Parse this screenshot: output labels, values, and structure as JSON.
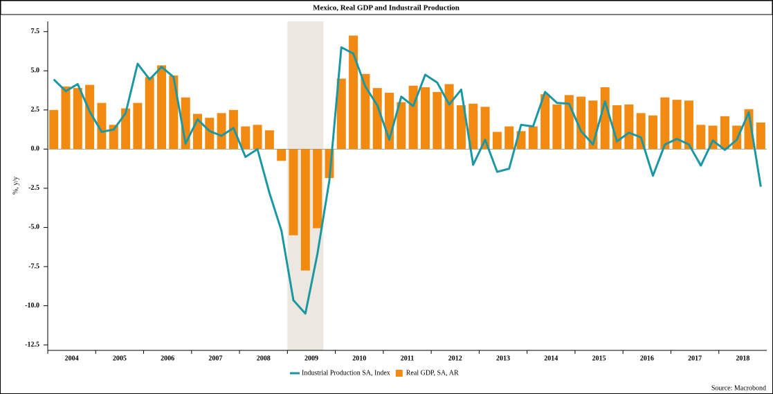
{
  "chart_data": {
    "type": "bar_line",
    "title": "Mexico, Real GDP and Industrail Production",
    "y_label": "%, y/y",
    "source": "Source: Macrobond",
    "years": [
      "2004",
      "2005",
      "2006",
      "2007",
      "2008",
      "2009",
      "2010",
      "2011",
      "2012",
      "2013",
      "2014",
      "2015",
      "2016",
      "2017",
      "2018"
    ],
    "ylim": [
      -12.85,
      8.15
    ],
    "yticks": [
      7.5,
      {
        "value": 5,
        "label": "5.0"
      },
      2.5,
      {
        "value": 0,
        "label": "0.0"
      },
      -2.5,
      {
        "value": -5,
        "label": "-5.0"
      },
      -7.5,
      {
        "value": -10,
        "label": "-10.0"
      },
      -12.5
    ],
    "series": [
      {
        "name": "Industrial Production SA, Index",
        "type": "line",
        "color": "#1a98a2",
        "values": [
          4.45,
          3.7,
          4.15,
          2.4,
          1.1,
          1.25,
          2.3,
          5.45,
          4.45,
          5.25,
          4.6,
          0.35,
          1.9,
          1.15,
          0.85,
          1.35,
          -0.5,
          0.0,
          -2.8,
          -5.2,
          -9.65,
          -10.5,
          -6.7,
          -2.0,
          6.5,
          6.1,
          4.0,
          2.8,
          0.6,
          3.35,
          2.75,
          4.75,
          4.25,
          2.85,
          3.8,
          -1.0,
          0.6,
          -1.45,
          -1.25,
          1.55,
          1.45,
          3.65,
          2.95,
          2.9,
          1.15,
          0.3,
          3.05,
          0.5,
          1.05,
          0.75,
          -1.7,
          0.3,
          0.65,
          0.3,
          -1.05,
          0.55,
          -0.05,
          0.6,
          2.35,
          -2.4
        ]
      },
      {
        "name": "Real GDP, SA, AR",
        "type": "bar",
        "color": "#f28a12",
        "values": [
          2.5,
          4.0,
          3.9,
          4.1,
          2.95,
          1.55,
          2.6,
          2.95,
          4.6,
          5.35,
          4.7,
          3.3,
          2.25,
          2.0,
          2.3,
          2.5,
          1.45,
          1.55,
          1.2,
          -0.75,
          -5.5,
          -7.75,
          -5.05,
          -1.85,
          4.5,
          7.25,
          4.8,
          3.9,
          3.6,
          3.0,
          4.05,
          3.95,
          3.65,
          4.15,
          2.8,
          2.9,
          2.7,
          1.1,
          1.45,
          1.15,
          1.45,
          3.5,
          2.85,
          3.45,
          3.35,
          3.1,
          3.95,
          2.8,
          2.85,
          2.3,
          2.15,
          3.3,
          3.15,
          3.1,
          1.55,
          1.5,
          2.1,
          1.5,
          2.55,
          1.7
        ]
      }
    ]
  }
}
